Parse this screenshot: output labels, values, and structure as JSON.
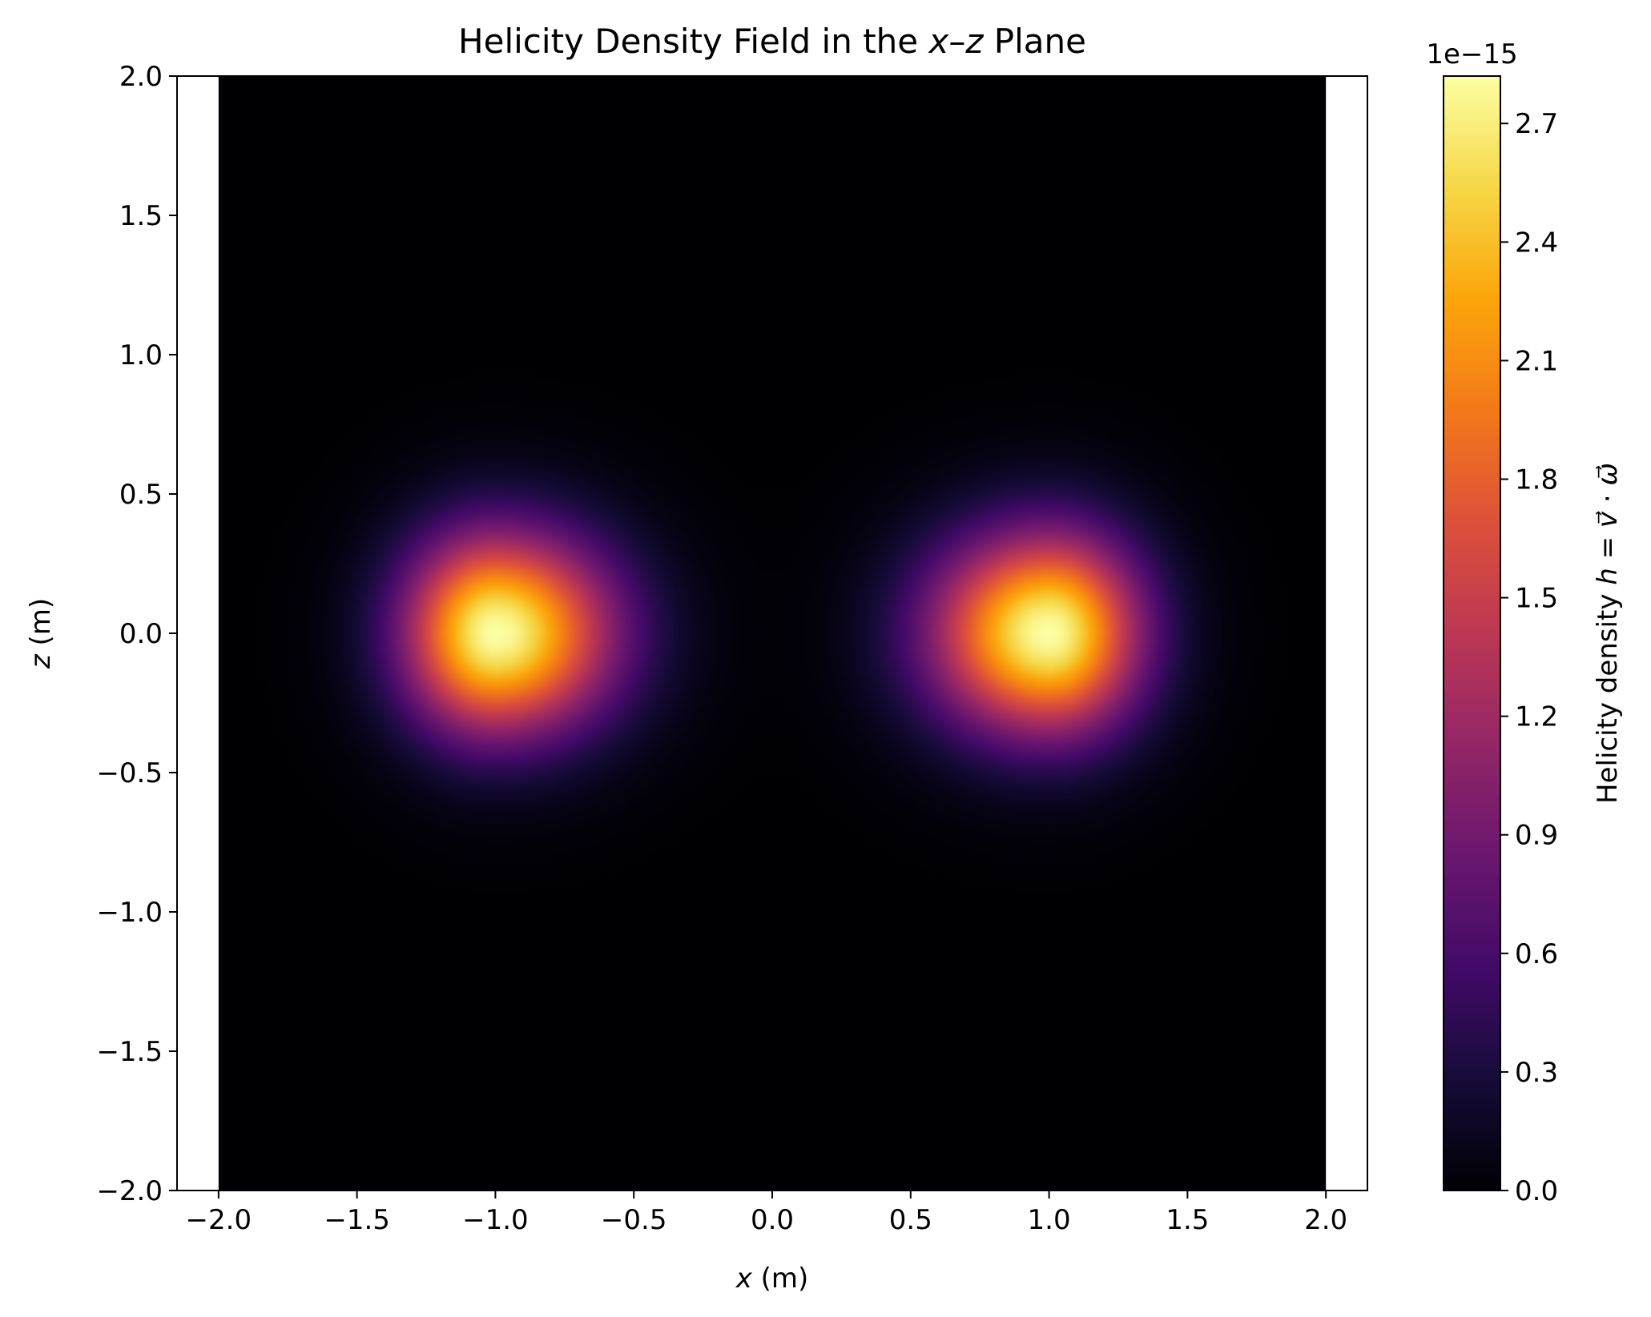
{
  "chart_data": {
    "type": "heatmap",
    "title_parts": [
      {
        "text": "Helicity Density Field in the ",
        "italic": false
      },
      {
        "text": "x",
        "italic": true
      },
      {
        "text": "–",
        "italic": false
      },
      {
        "text": "z",
        "italic": true
      },
      {
        "text": " Plane",
        "italic": false
      }
    ],
    "xlabel_parts": [
      {
        "text": "x",
        "italic": true
      },
      {
        "text": " (m)",
        "italic": false
      }
    ],
    "ylabel_parts": [
      {
        "text": "z",
        "italic": true
      },
      {
        "text": " (m)",
        "italic": false
      }
    ],
    "x_range": [
      -2.0,
      2.0
    ],
    "y_range": [
      -2.0,
      2.0
    ],
    "xlim": [
      -2.15,
      2.15
    ],
    "ylim": [
      -2.0,
      2.0
    ],
    "x_ticks": [
      -2.0,
      -1.5,
      -1.0,
      -0.5,
      0.0,
      0.5,
      1.0,
      1.5,
      2.0
    ],
    "x_tick_labels": [
      "−2.0",
      "−1.5",
      "−1.0",
      "−0.5",
      "0.0",
      "0.5",
      "1.0",
      "1.5",
      "2.0"
    ],
    "y_ticks": [
      2.0,
      1.5,
      1.0,
      0.5,
      0.0,
      -0.5,
      -1.0,
      -1.5,
      -2.0
    ],
    "y_tick_labels": [
      "2.0",
      "1.5",
      "1.0",
      "0.5",
      "0.0",
      "−0.5",
      "−1.0",
      "−1.5",
      "−2.0"
    ],
    "field": {
      "description": "two helicity blobs centred at x=-1 and x=+1, z=0",
      "blobs": [
        {
          "cx": -1.0,
          "cz": 0.0,
          "peak": 2.82,
          "sigma": 0.22,
          "skew": "right"
        },
        {
          "cx": 1.0,
          "cz": 0.0,
          "peak": 2.82,
          "sigma": 0.22,
          "skew": "left"
        }
      ],
      "units_scale": "1e−15"
    },
    "colorbar": {
      "colormap": "inferno",
      "vmin": 0.0,
      "vmax": 2.82,
      "ticks": [
        0.0,
        0.3,
        0.6,
        0.9,
        1.2,
        1.5,
        1.8,
        2.1,
        2.4,
        2.7
      ],
      "tick_labels": [
        "0.0",
        "0.3",
        "0.6",
        "0.9",
        "1.2",
        "1.5",
        "1.8",
        "2.1",
        "2.4",
        "2.7"
      ],
      "offset_text": "1e−15",
      "label_parts": [
        {
          "text": "Helicity density ",
          "italic": false
        },
        {
          "text": "h",
          "italic": true
        },
        {
          "text": " = ",
          "italic": false
        },
        {
          "text": "v⃗",
          "italic": true
        },
        {
          "text": " · ",
          "italic": false
        },
        {
          "text": "ω⃗",
          "italic": true
        }
      ]
    }
  }
}
